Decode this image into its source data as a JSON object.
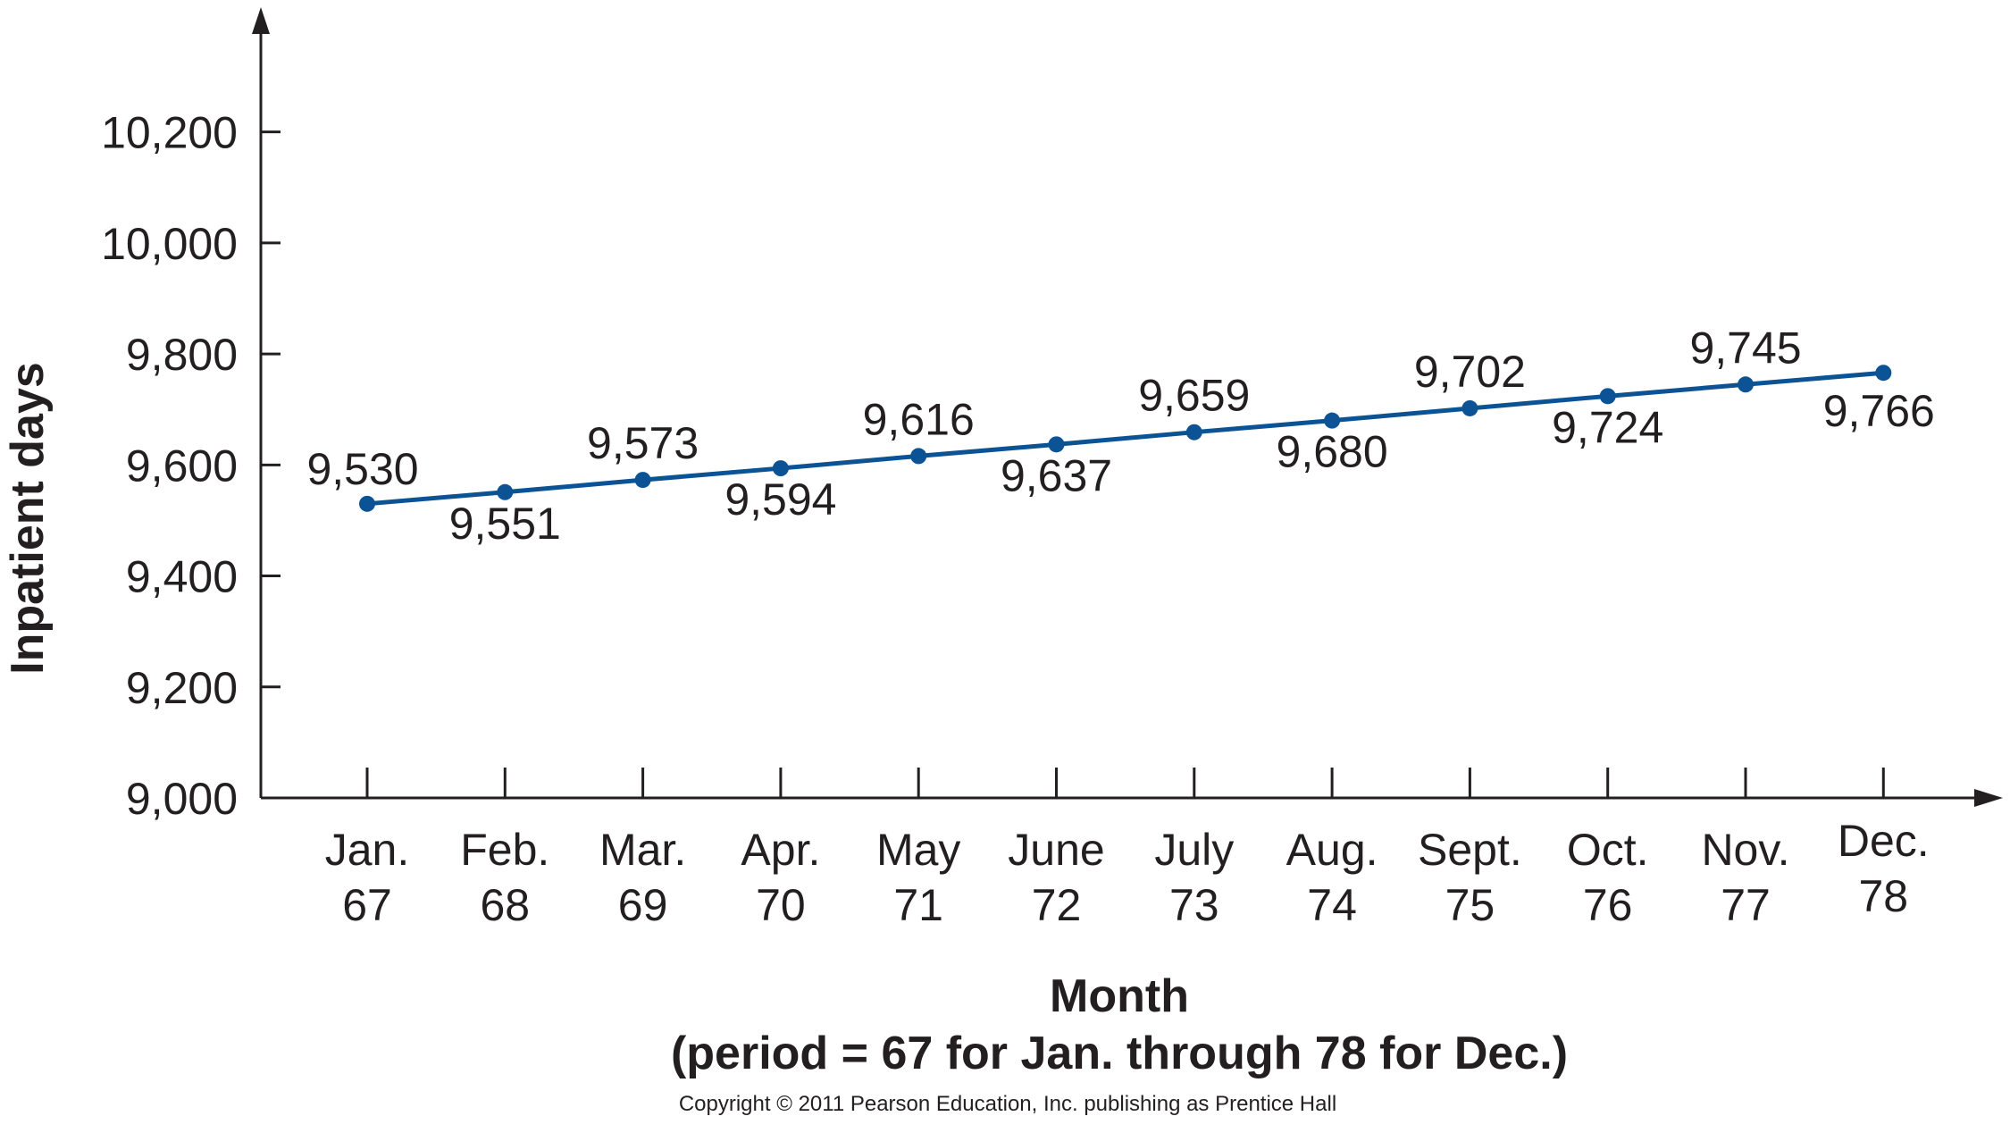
{
  "chart_data": {
    "type": "line",
    "title": "",
    "xlabel": "Month",
    "xlabel_sub": "(period = 67 for Jan. through 78 for Dec.)",
    "ylabel": "Inpatient days",
    "ylim": [
      9000,
      10400
    ],
    "yticks": [
      9000,
      9200,
      9400,
      9600,
      9800,
      10000,
      10200
    ],
    "ytick_labels": [
      "9,000",
      "9,200",
      "9,400",
      "9,600",
      "9,800",
      "10,000",
      "10,200"
    ],
    "categories": [
      {
        "month": "Jan.",
        "period": "67"
      },
      {
        "month": "Feb.",
        "period": "68"
      },
      {
        "month": "Mar.",
        "period": "69"
      },
      {
        "month": "Apr.",
        "period": "70"
      },
      {
        "month": "May",
        "period": "71"
      },
      {
        "month": "June",
        "period": "72"
      },
      {
        "month": "July",
        "period": "73"
      },
      {
        "month": "Aug.",
        "period": "74"
      },
      {
        "month": "Sept.",
        "period": "75"
      },
      {
        "month": "Oct.",
        "period": "76"
      },
      {
        "month": "Nov.",
        "period": "77"
      },
      {
        "month": "Dec.",
        "period": "78"
      }
    ],
    "values": [
      9530,
      9551,
      9573,
      9594,
      9616,
      9637,
      9659,
      9680,
      9702,
      9724,
      9745,
      9766
    ],
    "value_labels": [
      "9,530",
      "9,551",
      "9,573",
      "9,594",
      "9,616",
      "9,637",
      "9,659",
      "9,680",
      "9,702",
      "9,724",
      "9,745",
      "9,766"
    ],
    "line_color": "#0b5394",
    "axis_color": "#231f20",
    "grid": false,
    "legend": "none"
  },
  "copyright": "Copyright © 2011 Pearson Education, Inc. publishing as Prentice Hall"
}
